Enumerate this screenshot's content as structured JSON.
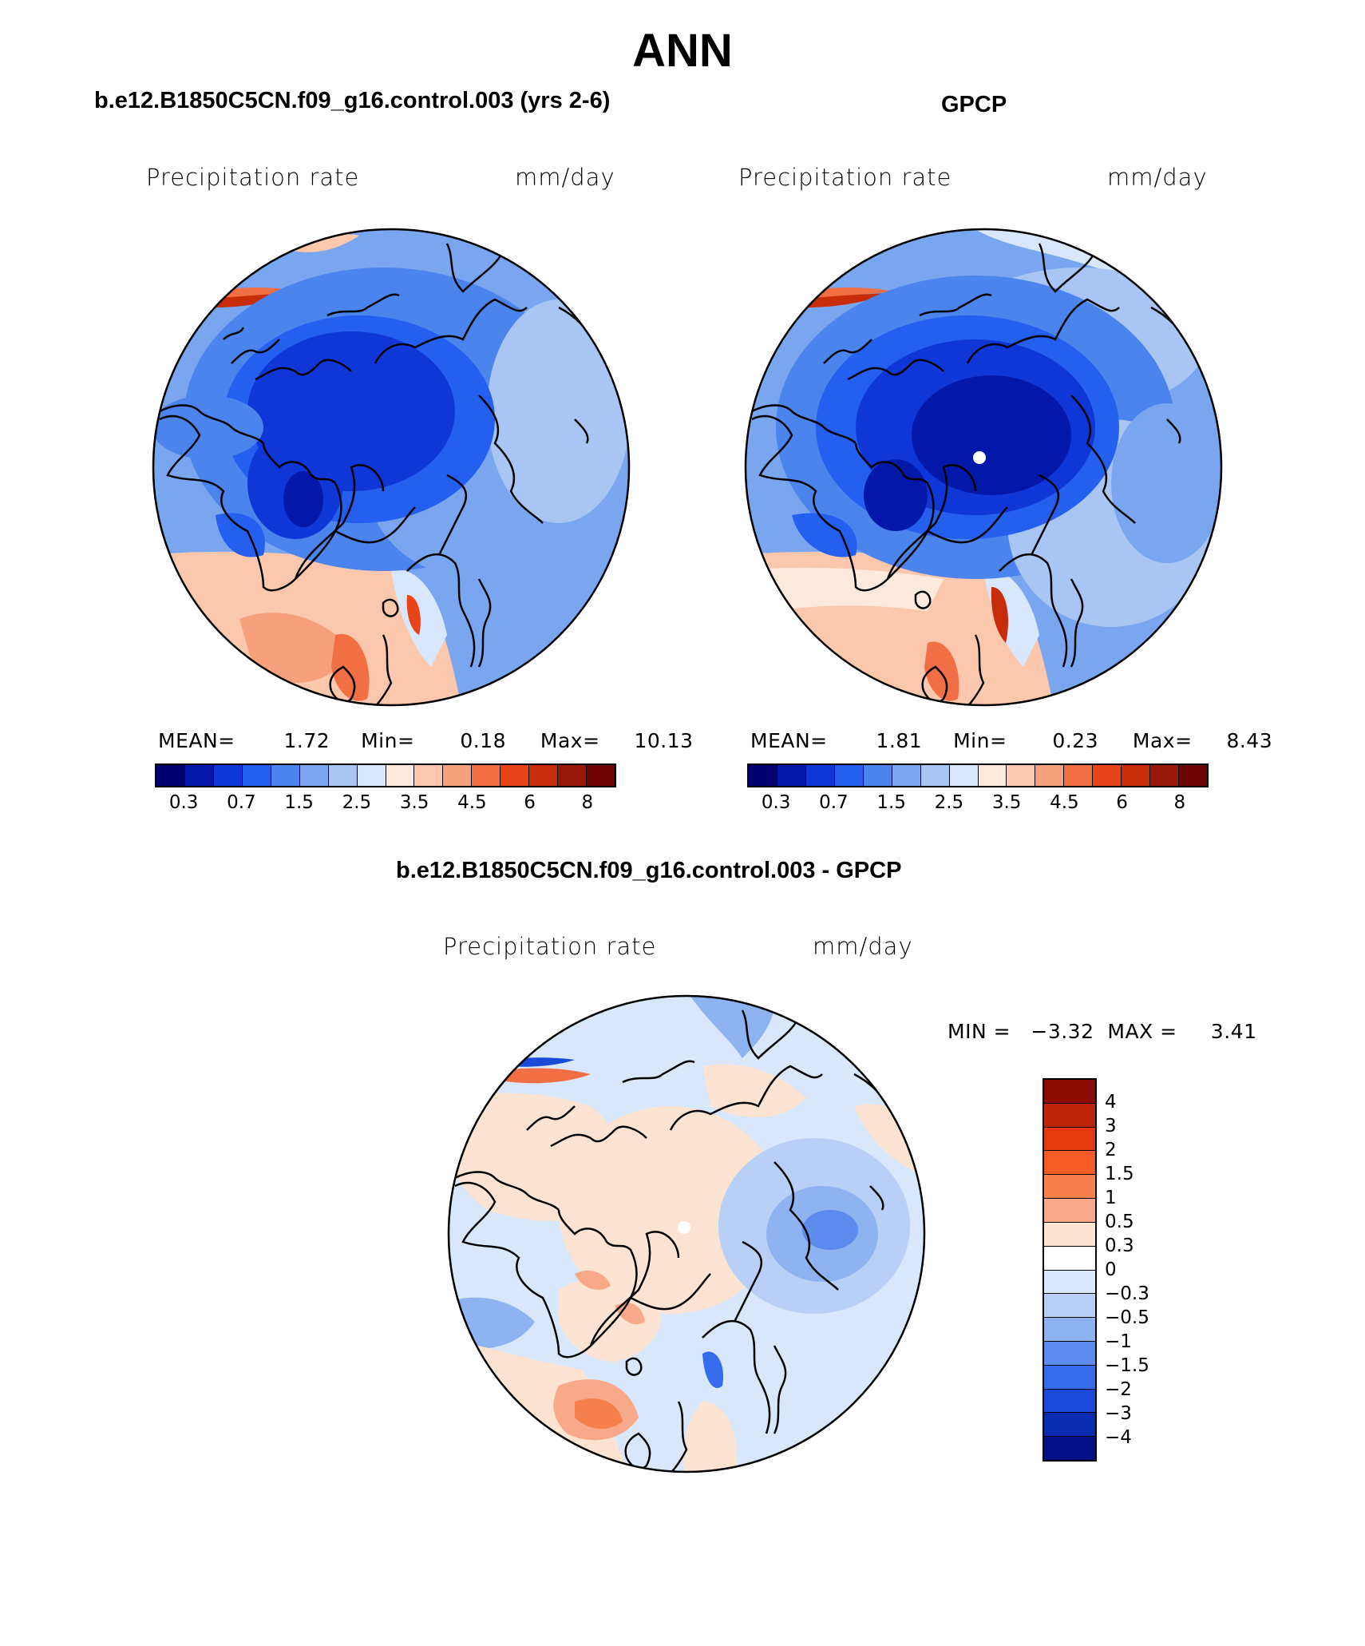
{
  "figure": {
    "title": "ANN",
    "left_panel_title": "b.e12.B1850C5CN.f09_g16.control.003 (yrs 2-6)",
    "right_panel_title": "GPCP",
    "diff_panel_title": "b.e12.B1850C5CN.f09_g16.control.003 - GPCP"
  },
  "panels": {
    "model": {
      "variable": "Precipitation rate",
      "units": "mm/day",
      "mean_label": "MEAN=",
      "mean": "1.72",
      "min_label": "Min=",
      "min": "0.18",
      "max_label": "Max=",
      "max": "10.13"
    },
    "obs": {
      "variable": "Precipitation rate",
      "units": "mm/day",
      "mean_label": "MEAN=",
      "mean": "1.81",
      "min_label": "Min=",
      "min": "0.23",
      "max_label": "Max=",
      "max": "8.43"
    },
    "diff": {
      "variable": "Precipitation rate",
      "units": "mm/day",
      "minmax_text": "MIN =   −3.32  MAX =     3.41"
    }
  },
  "colorbars": {
    "abs": {
      "colors": [
        "#030070",
        "#0318a8",
        "#0f37d8",
        "#245ff0",
        "#4a84ec",
        "#7aa6f0",
        "#a9c5f4",
        "#d8e7fb",
        "#fdeadc",
        "#fbc8ad",
        "#f7a07c",
        "#f26f45",
        "#e94418",
        "#c72d0b",
        "#991708",
        "#6d0202"
      ],
      "tick_labels": [
        "0.3",
        "0.7",
        "1.5",
        "2.5",
        "3.5",
        "4.5",
        "6",
        "8"
      ]
    },
    "diff": {
      "colors": [
        "#8a0c05",
        "#bd2508",
        "#e53a0e",
        "#f55b25",
        "#f57f4d",
        "#f7a989",
        "#fde4d2",
        "#ffffff",
        "#d8e7fb",
        "#b8d0f6",
        "#8fb2f1",
        "#5c8cee",
        "#346ceb",
        "#1a49d8",
        "#0a2cb0",
        "#040f86"
      ],
      "tick_labels": [
        "4",
        "3",
        "2",
        "1.5",
        "1",
        "0.5",
        "0.3",
        "0",
        "−0.3",
        "−0.5",
        "−1",
        "−1.5",
        "−2",
        "−3",
        "−4"
      ]
    }
  }
}
